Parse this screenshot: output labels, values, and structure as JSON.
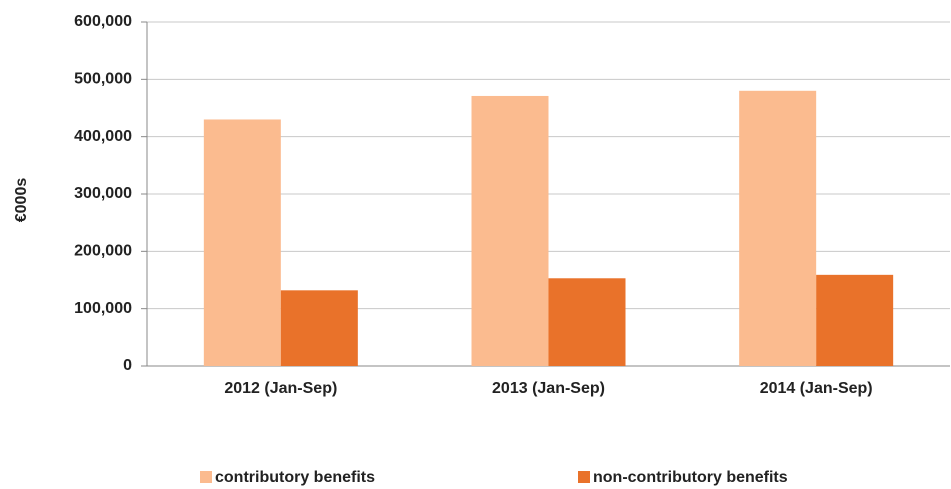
{
  "chart_data": {
    "type": "bar",
    "y_label": "€000s",
    "categories": [
      "2012 (Jan-Sep)",
      "2013 (Jan-Sep)",
      "2014 (Jan-Sep)"
    ],
    "series": [
      {
        "name": "contributory benefits",
        "color": "#fbbb8f",
        "values": [
          430000,
          471000,
          480000
        ]
      },
      {
        "name": "non-contributory benefits",
        "color": "#e9722a",
        "values": [
          132000,
          153000,
          159000
        ]
      }
    ],
    "ylim": [
      0,
      600000
    ],
    "yticks": [
      0,
      {
        "value": 100000,
        "label": "100,000"
      },
      {
        "value": 200000,
        "label": "200,000"
      },
      {
        "value": 300000,
        "label": "300,000"
      },
      {
        "value": 400000,
        "label": "400,000"
      },
      {
        "value": 500000,
        "label": "500,000"
      },
      {
        "value": 600000,
        "label": "600,000"
      }
    ],
    "grid": true,
    "legend": "bottom"
  }
}
